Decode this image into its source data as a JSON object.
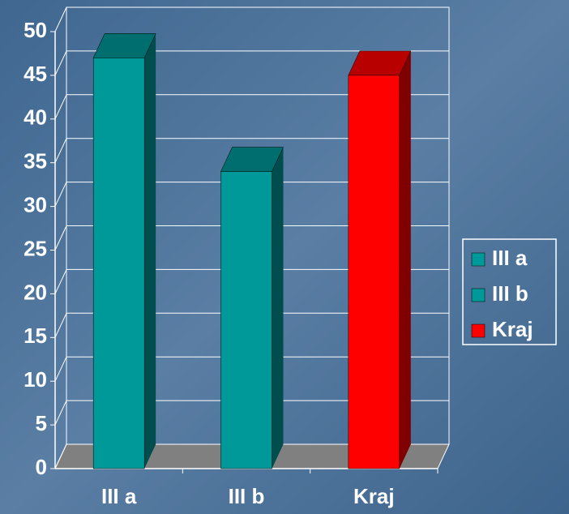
{
  "chart_data": {
    "type": "bar3d",
    "categories": [
      "III a",
      "III b",
      "Kraj"
    ],
    "values": [
      47,
      34,
      45
    ],
    "colors": [
      "#009999",
      "#009999",
      "#ff0000"
    ],
    "ylim": [
      0,
      50
    ],
    "yticks": [
      0,
      5,
      10,
      15,
      20,
      25,
      30,
      35,
      40,
      45,
      50
    ],
    "grid": true,
    "legend": "right"
  }
}
